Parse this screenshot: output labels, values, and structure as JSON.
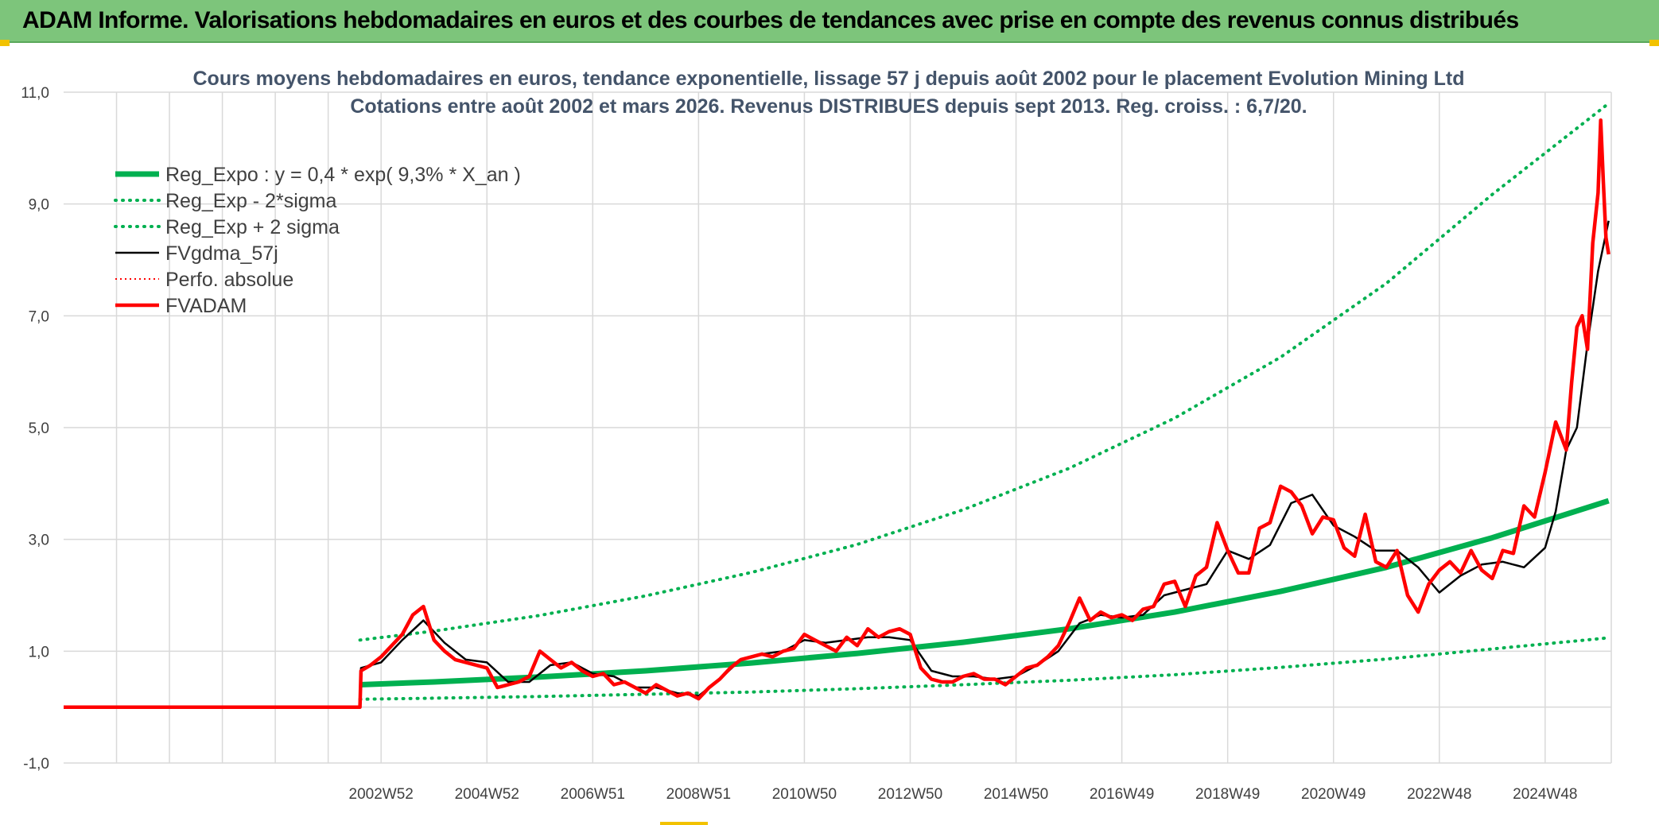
{
  "banner": {
    "title": "ADAM Informe. Valorisations hebdomadaires en euros et des courbes de tendances avec prise en compte des revenus connus distribués"
  },
  "colors": {
    "banner": "#7dc57b",
    "reg_expo": "#00b050",
    "fvgdma": "#000000",
    "perfo": "#ff0000",
    "fvadam": "#ff0000",
    "grid": "#d9d9d9",
    "title_text": "#44546a",
    "corner_accent": "#f2c200"
  },
  "chart_data": {
    "type": "line",
    "title": "Cours moyens hebdomadaires en euros, tendance exponentielle, lissage 57 j depuis août 2002 pour le placement Evolution Mining Ltd",
    "subtitle": "Cotations entre août 2002 et mars 2026. Revenus DISTRIBUES depuis sept 2013. Reg. croiss. : 6,7/20.",
    "xlabel": "",
    "ylabel": "",
    "grid": true,
    "legend_position": "top-left",
    "x_range": [
      1997.0,
      2026.25
    ],
    "ylim": [
      -1,
      11
    ],
    "y_ticks": [
      -1,
      1,
      3,
      5,
      7,
      9,
      11
    ],
    "y_tick_labels": [
      "-1,0",
      "1,0",
      "3,0",
      "5,0",
      "7,0",
      "9,0",
      "11,0"
    ],
    "x_ticks": [
      {
        "label": "2002W52",
        "x": 2003.0
      },
      {
        "label": "2004W52",
        "x": 2005.0
      },
      {
        "label": "2006W51",
        "x": 2007.0
      },
      {
        "label": "2008W51",
        "x": 2009.0
      },
      {
        "label": "2010W50",
        "x": 2011.0
      },
      {
        "label": "2012W50",
        "x": 2013.0
      },
      {
        "label": "2014W50",
        "x": 2015.0
      },
      {
        "label": "2016W49",
        "x": 2017.0
      },
      {
        "label": "2018W49",
        "x": 2019.0
      },
      {
        "label": "2020W49",
        "x": 2021.0
      },
      {
        "label": "2022W48",
        "x": 2023.0
      },
      {
        "label": "2024W48",
        "x": 2025.0
      }
    ],
    "minor_x_gridlines": [
      1998.0,
      1999.0,
      2000.0,
      2001.0,
      2002.0
    ],
    "series": [
      {
        "name": "Reg_Expo : y = 0,4 * exp( 9,3% *  X_an )",
        "style": "solid-thick",
        "color": "#00b050",
        "x": [
          2002.6,
          2004.0,
          2006.0,
          2008.0,
          2010.0,
          2012.0,
          2014.0,
          2016.0,
          2018.0,
          2020.0,
          2022.0,
          2024.0,
          2026.2
        ],
        "y": [
          0.4,
          0.45,
          0.54,
          0.65,
          0.79,
          0.96,
          1.16,
          1.4,
          1.7,
          2.07,
          2.5,
          3.03,
          3.69
        ]
      },
      {
        "name": "Reg_Exp - 2*sigma",
        "style": "dotted",
        "color": "#00b050",
        "x": [
          2002.6,
          2004.0,
          2006.0,
          2008.0,
          2010.0,
          2012.0,
          2014.0,
          2016.0,
          2018.0,
          2020.0,
          2022.0,
          2024.0,
          2026.2
        ],
        "y": [
          0.14,
          0.16,
          0.19,
          0.23,
          0.27,
          0.33,
          0.4,
          0.48,
          0.58,
          0.71,
          0.86,
          1.04,
          1.24
        ]
      },
      {
        "name": "Reg_Exp + 2 sigma",
        "style": "dotted",
        "color": "#00b050",
        "x": [
          2002.6,
          2004.0,
          2006.0,
          2008.0,
          2010.0,
          2012.0,
          2014.0,
          2016.0,
          2018.0,
          2020.0,
          2022.0,
          2024.0,
          2026.2
        ],
        "y": [
          1.2,
          1.36,
          1.64,
          1.99,
          2.41,
          2.91,
          3.53,
          4.27,
          5.17,
          6.26,
          7.58,
          9.17,
          10.8
        ]
      },
      {
        "name": "FVgdma_57j",
        "style": "solid-thin",
        "color": "#000000",
        "x": [
          1997.0,
          2002.6,
          2002.62,
          2003.0,
          2003.4,
          2003.8,
          2004.2,
          2004.6,
          2005.0,
          2005.4,
          2005.8,
          2006.2,
          2006.6,
          2007.0,
          2007.4,
          2007.8,
          2008.2,
          2008.6,
          2009.0,
          2009.4,
          2009.8,
          2010.2,
          2010.6,
          2011.0,
          2011.4,
          2011.8,
          2012.2,
          2012.6,
          2013.0,
          2013.4,
          2013.8,
          2014.2,
          2014.6,
          2015.0,
          2015.4,
          2015.8,
          2016.2,
          2016.6,
          2017.0,
          2017.4,
          2017.8,
          2018.2,
          2018.6,
          2019.0,
          2019.4,
          2019.8,
          2020.2,
          2020.6,
          2021.0,
          2021.4,
          2021.8,
          2022.2,
          2022.6,
          2023.0,
          2023.4,
          2023.8,
          2024.2,
          2024.6,
          2025.0,
          2025.2,
          2025.4,
          2025.6,
          2025.8,
          2026.0,
          2026.2
        ],
        "y": [
          0.0,
          0.0,
          0.7,
          0.8,
          1.2,
          1.55,
          1.15,
          0.85,
          0.8,
          0.45,
          0.45,
          0.75,
          0.8,
          0.6,
          0.55,
          0.35,
          0.35,
          0.25,
          0.2,
          0.5,
          0.85,
          0.95,
          1.0,
          1.2,
          1.15,
          1.2,
          1.25,
          1.25,
          1.2,
          0.65,
          0.55,
          0.55,
          0.5,
          0.55,
          0.75,
          1.0,
          1.5,
          1.65,
          1.6,
          1.65,
          2.0,
          2.1,
          2.2,
          2.8,
          2.65,
          2.9,
          3.65,
          3.8,
          3.25,
          3.05,
          2.8,
          2.8,
          2.5,
          2.05,
          2.35,
          2.55,
          2.6,
          2.5,
          2.85,
          3.5,
          4.6,
          5.0,
          6.5,
          7.8,
          8.7
        ]
      },
      {
        "name": "Perfo. absolue",
        "style": "dotted-thin",
        "color": "#ff0000",
        "x": [],
        "y": []
      },
      {
        "name": "FVADAM",
        "style": "solid-thick",
        "color": "#ff0000",
        "x": [
          1997.0,
          2002.6,
          2002.62,
          2002.8,
          2003.0,
          2003.2,
          2003.4,
          2003.6,
          2003.8,
          2004.0,
          2004.2,
          2004.4,
          2004.6,
          2004.8,
          2005.0,
          2005.2,
          2005.4,
          2005.6,
          2005.8,
          2006.0,
          2006.2,
          2006.4,
          2006.6,
          2006.8,
          2007.0,
          2007.2,
          2007.4,
          2007.6,
          2007.8,
          2008.0,
          2008.2,
          2008.4,
          2008.6,
          2008.8,
          2009.0,
          2009.2,
          2009.4,
          2009.6,
          2009.8,
          2010.0,
          2010.2,
          2010.4,
          2010.6,
          2010.8,
          2011.0,
          2011.2,
          2011.4,
          2011.6,
          2011.8,
          2012.0,
          2012.2,
          2012.4,
          2012.6,
          2012.8,
          2013.0,
          2013.2,
          2013.4,
          2013.6,
          2013.8,
          2014.0,
          2014.2,
          2014.4,
          2014.6,
          2014.8,
          2015.0,
          2015.2,
          2015.4,
          2015.6,
          2015.8,
          2016.0,
          2016.2,
          2016.4,
          2016.6,
          2016.8,
          2017.0,
          2017.2,
          2017.4,
          2017.6,
          2017.8,
          2018.0,
          2018.2,
          2018.4,
          2018.6,
          2018.8,
          2019.0,
          2019.2,
          2019.4,
          2019.6,
          2019.8,
          2020.0,
          2020.2,
          2020.4,
          2020.6,
          2020.8,
          2021.0,
          2021.2,
          2021.4,
          2021.6,
          2021.8,
          2022.0,
          2022.2,
          2022.4,
          2022.6,
          2022.8,
          2023.0,
          2023.2,
          2023.4,
          2023.6,
          2023.8,
          2024.0,
          2024.2,
          2024.4,
          2024.6,
          2024.8,
          2025.0,
          2025.2,
          2025.4,
          2025.5,
          2025.6,
          2025.7,
          2025.8,
          2025.9,
          2026.0,
          2026.05,
          2026.1,
          2026.15,
          2026.2
        ],
        "y": [
          0.0,
          0.0,
          0.65,
          0.75,
          0.9,
          1.1,
          1.3,
          1.65,
          1.8,
          1.2,
          1.0,
          0.85,
          0.8,
          0.75,
          0.7,
          0.35,
          0.4,
          0.45,
          0.55,
          1.0,
          0.85,
          0.7,
          0.8,
          0.65,
          0.55,
          0.6,
          0.4,
          0.45,
          0.35,
          0.25,
          0.4,
          0.3,
          0.2,
          0.25,
          0.15,
          0.35,
          0.5,
          0.7,
          0.85,
          0.9,
          0.95,
          0.9,
          1.0,
          1.05,
          1.3,
          1.2,
          1.1,
          1.0,
          1.25,
          1.1,
          1.4,
          1.25,
          1.35,
          1.4,
          1.3,
          0.7,
          0.5,
          0.45,
          0.45,
          0.55,
          0.6,
          0.5,
          0.5,
          0.4,
          0.55,
          0.7,
          0.75,
          0.9,
          1.1,
          1.5,
          1.95,
          1.55,
          1.7,
          1.6,
          1.65,
          1.55,
          1.75,
          1.8,
          2.2,
          2.25,
          1.8,
          2.35,
          2.5,
          3.3,
          2.8,
          2.4,
          2.4,
          3.2,
          3.3,
          3.95,
          3.85,
          3.6,
          3.1,
          3.4,
          3.35,
          2.85,
          2.7,
          3.45,
          2.6,
          2.5,
          2.8,
          2.0,
          1.7,
          2.2,
          2.45,
          2.6,
          2.4,
          2.8,
          2.45,
          2.3,
          2.8,
          2.75,
          3.6,
          3.4,
          4.2,
          5.1,
          4.6,
          5.8,
          6.8,
          7.0,
          6.4,
          8.3,
          9.2,
          10.5,
          9.4,
          8.4,
          8.1
        ]
      }
    ]
  },
  "legend": {
    "items": [
      {
        "label": "Reg_Expo : y = 0,4 * exp( 9,3% *  X_an )"
      },
      {
        "label": "Reg_Exp - 2*sigma"
      },
      {
        "label": "Reg_Exp + 2 sigma"
      },
      {
        "label": "FVgdma_57j"
      },
      {
        "label": "Perfo. absolue"
      },
      {
        "label": "FVADAM"
      }
    ]
  }
}
